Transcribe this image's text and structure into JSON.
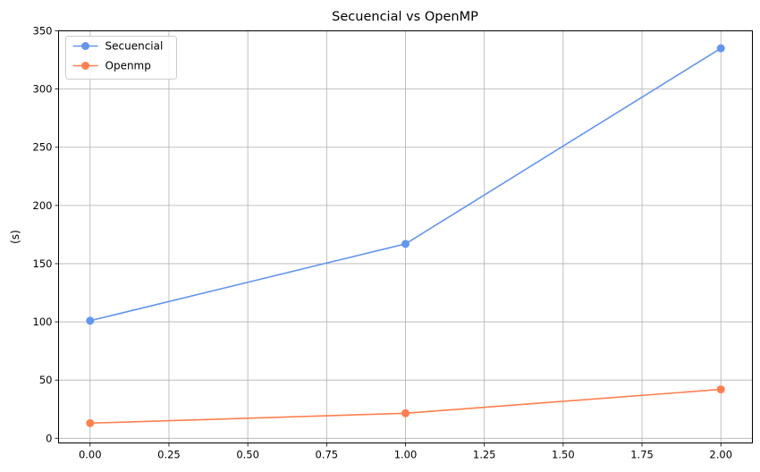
{
  "chart_data": {
    "type": "line",
    "title": "Secuencial vs OpenMP",
    "xlabel": "",
    "ylabel": "(s)",
    "xlim": [
      -0.1,
      2.1
    ],
    "ylim": [
      -4,
      350
    ],
    "x_ticks": [
      0.0,
      0.25,
      0.5,
      0.75,
      1.0,
      1.25,
      1.5,
      1.75,
      2.0
    ],
    "x_tick_labels": [
      "0.00",
      "0.25",
      "0.50",
      "0.75",
      "1.00",
      "1.25",
      "1.50",
      "1.75",
      "2.00"
    ],
    "y_ticks": [
      0,
      50,
      100,
      150,
      200,
      250,
      300,
      350
    ],
    "y_tick_labels": [
      "0",
      "50",
      "100",
      "150",
      "200",
      "250",
      "300",
      "350"
    ],
    "grid": true,
    "legend_position": "top-left",
    "x": [
      0,
      1,
      2
    ],
    "series": [
      {
        "name": "Secuencial",
        "values": [
          101,
          167,
          335
        ],
        "color": "#6495ED",
        "marker": "circle"
      },
      {
        "name": "Openmp",
        "values": [
          13,
          21.5,
          42
        ],
        "color": "#FF7F50",
        "marker": "circle"
      }
    ]
  }
}
